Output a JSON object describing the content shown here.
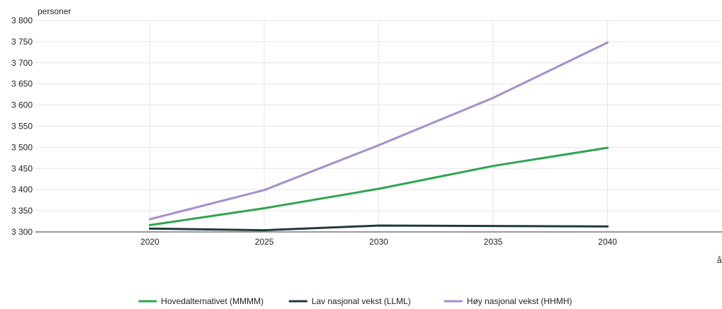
{
  "chart_data": {
    "type": "line",
    "ylabel": "personer",
    "xlabel": "år",
    "x": [
      2020,
      2025,
      2030,
      2035,
      2040
    ],
    "xlim": [
      2015,
      2045
    ],
    "ylim": [
      3300,
      3800
    ],
    "yticks": [
      3300,
      3350,
      3400,
      3450,
      3500,
      3550,
      3600,
      3650,
      3700,
      3750,
      3800
    ],
    "ytick_labels": [
      "3 300",
      "3 350",
      "3 400",
      "3 450",
      "3 500",
      "3 550",
      "3 600",
      "3 650",
      "3 700",
      "3 750",
      "3 800"
    ],
    "xtick_labels": [
      "2020",
      "2025",
      "2030",
      "2035",
      "2040"
    ],
    "grid": true,
    "legend_position": "bottom",
    "series": [
      {
        "name": "Hovedalternativet (MMMM)",
        "color": "#2ea44f",
        "values": [
          3316,
          3356,
          3402,
          3456,
          3499
        ]
      },
      {
        "name": "Lav nasjonal vekst (LLML)",
        "color": "#1f3a3d",
        "values": [
          3308,
          3304,
          3315,
          3314,
          3313
        ]
      },
      {
        "name": "Høy nasjonal vekst (HHMH)",
        "color": "#a38fcf",
        "values": [
          3330,
          3399,
          3505,
          3617,
          3748
        ]
      }
    ]
  }
}
